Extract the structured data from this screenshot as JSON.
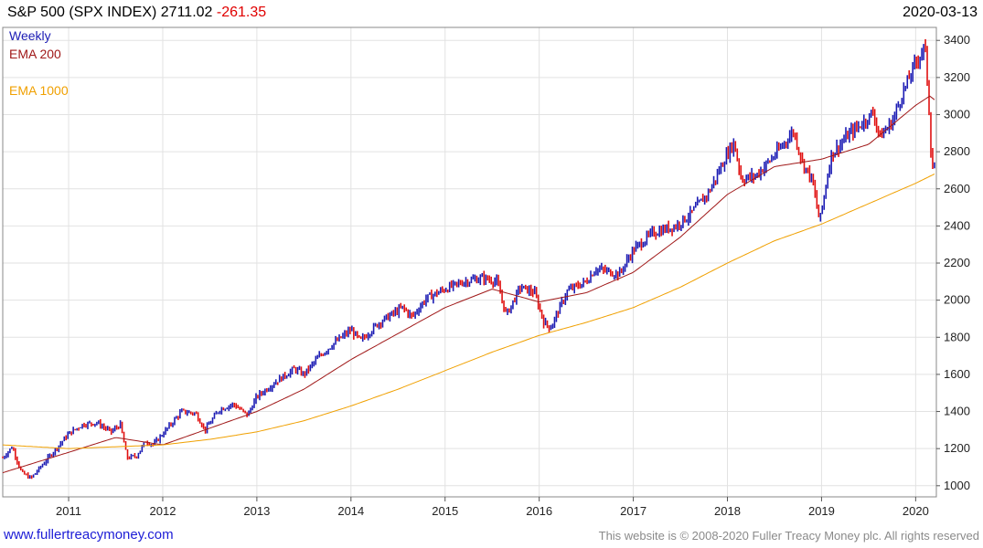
{
  "header": {
    "title": "S&P 500 (SPX INDEX)",
    "last": "2711.02",
    "change": "-261.35",
    "date": "2020-03-13"
  },
  "legend": [
    {
      "label": "Weekly",
      "color": "#1c1cb4"
    },
    {
      "label": "EMA 200",
      "color": "#a01818"
    },
    {
      "label": "EMA 1000",
      "color": "#f0a000"
    }
  ],
  "footer": {
    "url": "www.fullertreacymoney.com",
    "copyright": "This website is © 2008-2020 Fuller Treacy Money plc. All rights reserved"
  },
  "colors": {
    "up": "#1c1cb4",
    "down": "#e01010",
    "ema200": "#a01818",
    "ema1000": "#f0a000",
    "grid": "#e2e2e2",
    "axis": "#555555"
  },
  "chart_data": {
    "type": "line",
    "title": "S&P 500 (SPX INDEX)",
    "frequency": "Weekly",
    "y_axis_side": "right",
    "xlim": [
      2010.3,
      2020.22
    ],
    "ylim": [
      940,
      3470
    ],
    "grid": true,
    "legend_position": "top-left",
    "x_ticks": [
      {
        "value": 2011,
        "label": "2011"
      },
      {
        "value": 2012,
        "label": "2012"
      },
      {
        "value": 2013,
        "label": "2013"
      },
      {
        "value": 2014,
        "label": "2014"
      },
      {
        "value": 2015,
        "label": "2015"
      },
      {
        "value": 2016,
        "label": "2016"
      },
      {
        "value": 2017,
        "label": "2017"
      },
      {
        "value": 2018,
        "label": "2018"
      },
      {
        "value": 2019,
        "label": "2019"
      },
      {
        "value": 2020,
        "label": "2020"
      }
    ],
    "y_ticks": [
      1000,
      1200,
      1400,
      1600,
      1800,
      2000,
      2200,
      2400,
      2600,
      2800,
      3000,
      3200,
      3400
    ],
    "series": [
      {
        "name": "Weekly",
        "kind": "price",
        "x": [
          2010.3,
          2010.4,
          2010.5,
          2010.6,
          2010.75,
          2010.9,
          2011.0,
          2011.15,
          2011.3,
          2011.45,
          2011.55,
          2011.62,
          2011.72,
          2011.82,
          2011.9,
          2012.0,
          2012.2,
          2012.35,
          2012.45,
          2012.6,
          2012.75,
          2012.9,
          2013.0,
          2013.2,
          2013.4,
          2013.5,
          2013.65,
          2013.8,
          2014.0,
          2014.1,
          2014.3,
          2014.55,
          2014.65,
          2014.8,
          2015.0,
          2015.2,
          2015.4,
          2015.55,
          2015.65,
          2015.8,
          2015.95,
          2016.05,
          2016.12,
          2016.3,
          2016.5,
          2016.6,
          2016.85,
          2017.0,
          2017.2,
          2017.45,
          2017.6,
          2017.8,
          2018.0,
          2018.07,
          2018.15,
          2018.3,
          2018.5,
          2018.7,
          2018.8,
          2018.9,
          2018.98,
          2019.1,
          2019.3,
          2019.38,
          2019.55,
          2019.62,
          2019.75,
          2019.85,
          2020.0,
          2020.1,
          2020.14,
          2020.17,
          2020.2
        ],
        "y": [
          1150,
          1210,
          1070,
          1040,
          1130,
          1220,
          1280,
          1330,
          1340,
          1290,
          1330,
          1150,
          1160,
          1240,
          1220,
          1280,
          1400,
          1390,
          1300,
          1410,
          1440,
          1380,
          1480,
          1560,
          1630,
          1600,
          1690,
          1760,
          1840,
          1780,
          1880,
          1960,
          1910,
          2010,
          2060,
          2100,
          2120,
          2100,
          1920,
          2070,
          2040,
          1880,
          1850,
          2050,
          2100,
          2170,
          2140,
          2270,
          2360,
          2400,
          2460,
          2580,
          2790,
          2850,
          2650,
          2670,
          2780,
          2910,
          2740,
          2650,
          2420,
          2780,
          2900,
          2930,
          3010,
          2880,
          2960,
          3100,
          3280,
          3370,
          3050,
          2720,
          2711
        ]
      },
      {
        "name": "EMA 200",
        "kind": "ema",
        "x": [
          2010.3,
          2011.0,
          2011.5,
          2012.0,
          2012.5,
          2013.0,
          2013.5,
          2014.0,
          2014.5,
          2015.0,
          2015.5,
          2016.0,
          2016.5,
          2017.0,
          2017.5,
          2018.0,
          2018.5,
          2019.0,
          2019.5,
          2020.0,
          2020.15,
          2020.2
        ],
        "y": [
          1070,
          1180,
          1260,
          1220,
          1310,
          1400,
          1520,
          1680,
          1820,
          1960,
          2060,
          1990,
          2040,
          2150,
          2340,
          2570,
          2720,
          2760,
          2840,
          3050,
          3100,
          3080
        ]
      },
      {
        "name": "EMA 1000",
        "kind": "ema",
        "x": [
          2010.3,
          2011.0,
          2011.5,
          2012.0,
          2012.5,
          2013.0,
          2013.5,
          2014.0,
          2014.5,
          2015.0,
          2015.5,
          2016.0,
          2016.5,
          2017.0,
          2017.5,
          2018.0,
          2018.5,
          2019.0,
          2019.5,
          2020.0,
          2020.2
        ],
        "y": [
          1220,
          1200,
          1210,
          1220,
          1250,
          1290,
          1350,
          1430,
          1520,
          1620,
          1720,
          1810,
          1880,
          1960,
          2070,
          2200,
          2320,
          2410,
          2520,
          2630,
          2680
        ]
      }
    ]
  }
}
